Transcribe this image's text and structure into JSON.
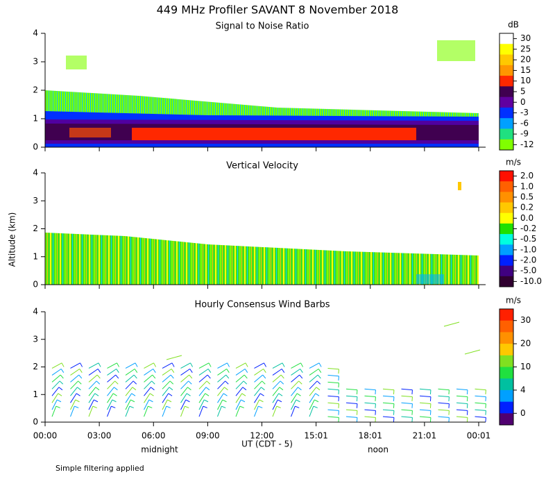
{
  "title": "449 MHz Profiler SAVANT  8 November 2018",
  "y_label": "Altitude (km)",
  "x_label": "UT  (CDT - 5)",
  "x_ticks": [
    "00:00",
    "03:00",
    "06:00",
    "09:00",
    "12:00",
    "15:01",
    "18:01",
    "21:01",
    "00:01"
  ],
  "x_annotations": {
    "midnight": "midnight",
    "noon": "noon"
  },
  "footer": "Simple filtering applied",
  "panels": [
    {
      "title": "Signal to Noise Ratio",
      "ylim": [
        0,
        4
      ],
      "yticks": [
        0,
        1,
        2,
        3,
        4
      ],
      "colorbar": {
        "unit": "dB",
        "ticks": [
          30,
          25,
          20,
          15,
          10,
          5,
          0,
          -3,
          -6,
          -9,
          -12
        ],
        "colors": [
          "#ffffff",
          "#ffff00",
          "#ffc800",
          "#ff9600",
          "#ff2800",
          "#400050",
          "#6000a0",
          "#0030ff",
          "#00a0ff",
          "#20e080",
          "#80ff00"
        ]
      }
    },
    {
      "title": "Vertical Velocity",
      "ylim": [
        0,
        4
      ],
      "yticks": [
        0,
        1,
        2,
        3,
        4
      ],
      "colorbar": {
        "unit": "m/s",
        "ticks": [
          {
            "value": 2,
            "label": "2.0"
          },
          {
            "value": 1,
            "label": "1.0"
          },
          0.5,
          0.2,
          {
            "value": 0,
            "label": "0.0"
          },
          -0.2,
          -0.5,
          {
            "value": -1,
            "label": "-1.0"
          },
          {
            "value": -2,
            "label": "-2.0"
          },
          {
            "value": -5,
            "label": "-5.0"
          },
          {
            "value": -10,
            "label": "-10.0"
          }
        ],
        "colors": [
          "#ff1000",
          "#ff6000",
          "#ff9000",
          "#ffc800",
          "#ffff00",
          "#20e000",
          "#00ffe0",
          "#00a0ff",
          "#0020ff",
          "#400080",
          "#300030"
        ]
      }
    },
    {
      "title": "Hourly Consensus Wind Barbs",
      "ylim": [
        0,
        4
      ],
      "yticks": [
        0,
        1,
        2,
        3,
        4
      ],
      "colorbar": {
        "unit": "m/s",
        "ticks": [
          30,
          20,
          10,
          4,
          0
        ],
        "colors": [
          "#ff2000",
          "#ff6000",
          "#ff9000",
          "#ffc800",
          "#80e020",
          "#20e040",
          "#00c0a0",
          "#00a0ff",
          "#0020ff",
          "#500070"
        ]
      }
    }
  ]
}
